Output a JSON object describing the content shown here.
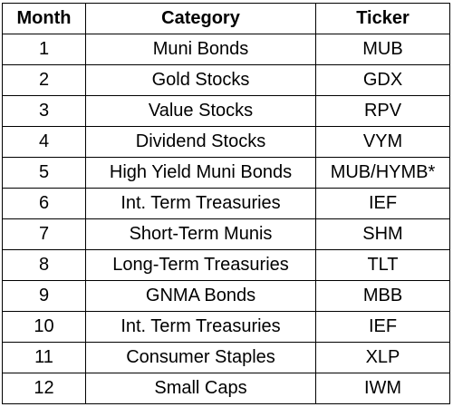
{
  "table": {
    "headers": [
      "Month",
      "Category",
      "Ticker"
    ],
    "rows": [
      {
        "month": "1",
        "category": "Muni Bonds",
        "ticker": "MUB"
      },
      {
        "month": "2",
        "category": "Gold Stocks",
        "ticker": "GDX"
      },
      {
        "month": "3",
        "category": "Value Stocks",
        "ticker": "RPV"
      },
      {
        "month": "4",
        "category": "Dividend Stocks",
        "ticker": "VYM"
      },
      {
        "month": "5",
        "category": "High Yield Muni Bonds",
        "ticker": "MUB/HYMB*"
      },
      {
        "month": "6",
        "category": "Int. Term Treasuries",
        "ticker": "IEF"
      },
      {
        "month": "7",
        "category": "Short-Term Munis",
        "ticker": "SHM"
      },
      {
        "month": "8",
        "category": "Long-Term Treasuries",
        "ticker": "TLT"
      },
      {
        "month": "9",
        "category": "GNMA Bonds",
        "ticker": "MBB"
      },
      {
        "month": "10",
        "category": "Int. Term Treasuries",
        "ticker": "IEF"
      },
      {
        "month": "11",
        "category": "Consumer Staples",
        "ticker": "XLP"
      },
      {
        "month": "12",
        "category": "Small Caps",
        "ticker": "IWM"
      }
    ]
  }
}
